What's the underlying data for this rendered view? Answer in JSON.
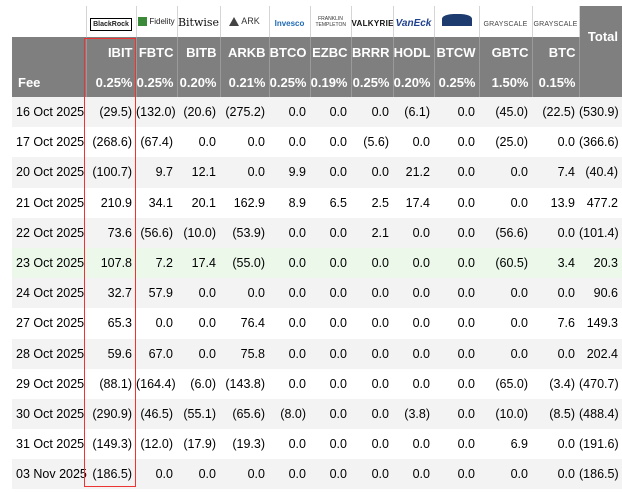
{
  "columns": [
    {
      "ticker": "IBIT",
      "fee": "0.25%",
      "logo_text": "BlackRock",
      "logo_icon": "blackrock-logo"
    },
    {
      "ticker": "FBTC",
      "fee": "0.25%",
      "logo_text": "Fidelity",
      "logo_icon": "fidelity-logo"
    },
    {
      "ticker": "BITB",
      "fee": "0.20%",
      "logo_text": "Bitwise",
      "logo_icon": "bitwise-logo"
    },
    {
      "ticker": "ARKB",
      "fee": "0.21%",
      "logo_text": "ARK",
      "logo_icon": "ark-logo"
    },
    {
      "ticker": "BTCO",
      "fee": "0.25%",
      "logo_text": "Invesco",
      "logo_icon": "invesco-logo"
    },
    {
      "ticker": "EZBC",
      "fee": "0.19%",
      "logo_text": "FRANKLIN TEMPLETON",
      "logo_icon": "franklin-logo"
    },
    {
      "ticker": "BRRR",
      "fee": "0.25%",
      "logo_text": "VALKYRIE",
      "logo_icon": "valkyrie-logo"
    },
    {
      "ticker": "HODL",
      "fee": "0.20%",
      "logo_text": "VanEck",
      "logo_icon": "vaneck-logo"
    },
    {
      "ticker": "BTCW",
      "fee": "0.25%",
      "logo_text": "",
      "logo_icon": "wisdomtree-logo"
    },
    {
      "ticker": "GBTC",
      "fee": "1.50%",
      "logo_text": "GRAYSCALE",
      "logo_icon": "grayscale-logo"
    },
    {
      "ticker": "BTC",
      "fee": "0.15%",
      "logo_text": "GRAYSCALE",
      "logo_icon": "grayscale-logo"
    }
  ],
  "total_label": "Total",
  "fee_label": "Fee",
  "rows": [
    {
      "date": "16 Oct 2025",
      "values": [
        "(29.5)",
        "(132.0)",
        "(20.6)",
        "(275.2)",
        "0.0",
        "0.0",
        "0.0",
        "(6.1)",
        "0.0",
        "(45.0)",
        "(22.5)"
      ],
      "total": "(530.9)"
    },
    {
      "date": "17 Oct 2025",
      "values": [
        "(268.6)",
        "(67.4)",
        "0.0",
        "0.0",
        "0.0",
        "0.0",
        "(5.6)",
        "0.0",
        "0.0",
        "(25.0)",
        "0.0"
      ],
      "total": "(366.6)"
    },
    {
      "date": "20 Oct 2025",
      "values": [
        "(100.7)",
        "9.7",
        "12.1",
        "0.0",
        "9.9",
        "0.0",
        "0.0",
        "21.2",
        "0.0",
        "0.0",
        "7.4"
      ],
      "total": "(40.4)"
    },
    {
      "date": "21 Oct 2025",
      "values": [
        "210.9",
        "34.1",
        "20.1",
        "162.9",
        "8.9",
        "6.5",
        "2.5",
        "17.4",
        "0.0",
        "0.0",
        "13.9"
      ],
      "total": "477.2"
    },
    {
      "date": "22 Oct 2025",
      "values": [
        "73.6",
        "(56.6)",
        "(10.0)",
        "(53.9)",
        "0.0",
        "0.0",
        "2.1",
        "0.0",
        "0.0",
        "(56.6)",
        "0.0"
      ],
      "total": "(101.4)"
    },
    {
      "date": "23 Oct 2025",
      "values": [
        "107.8",
        "7.2",
        "17.4",
        "(55.0)",
        "0.0",
        "0.0",
        "0.0",
        "0.0",
        "0.0",
        "(60.5)",
        "3.4"
      ],
      "total": "20.3",
      "highlight": true
    },
    {
      "date": "24 Oct 2025",
      "values": [
        "32.7",
        "57.9",
        "0.0",
        "0.0",
        "0.0",
        "0.0",
        "0.0",
        "0.0",
        "0.0",
        "0.0",
        "0.0"
      ],
      "total": "90.6"
    },
    {
      "date": "27 Oct 2025",
      "values": [
        "65.3",
        "0.0",
        "0.0",
        "76.4",
        "0.0",
        "0.0",
        "0.0",
        "0.0",
        "0.0",
        "0.0",
        "7.6"
      ],
      "total": "149.3"
    },
    {
      "date": "28 Oct 2025",
      "values": [
        "59.6",
        "67.0",
        "0.0",
        "75.8",
        "0.0",
        "0.0",
        "0.0",
        "0.0",
        "0.0",
        "0.0",
        "0.0"
      ],
      "total": "202.4"
    },
    {
      "date": "29 Oct 2025",
      "values": [
        "(88.1)",
        "(164.4)",
        "(6.0)",
        "(143.8)",
        "0.0",
        "0.0",
        "0.0",
        "0.0",
        "0.0",
        "(65.0)",
        "(3.4)"
      ],
      "total": "(470.7)"
    },
    {
      "date": "30 Oct 2025",
      "values": [
        "(290.9)",
        "(46.5)",
        "(55.1)",
        "(65.6)",
        "(8.0)",
        "0.0",
        "0.0",
        "(3.8)",
        "0.0",
        "(10.0)",
        "(8.5)"
      ],
      "total": "(488.4)"
    },
    {
      "date": "31 Oct 2025",
      "values": [
        "(149.3)",
        "(12.0)",
        "(17.9)",
        "(19.3)",
        "0.0",
        "0.0",
        "0.0",
        "0.0",
        "0.0",
        "6.9",
        "0.0"
      ],
      "total": "(191.6)"
    },
    {
      "date": "03 Nov 2025",
      "values": [
        "(186.5)",
        "0.0",
        "0.0",
        "0.0",
        "0.0",
        "0.0",
        "0.0",
        "0.0",
        "0.0",
        "0.0",
        "0.0"
      ],
      "total": "(186.5)"
    }
  ],
  "colors": {
    "header_bg": "#7f7f7f",
    "negative": "#e00000",
    "highlight_row": "#ebf8ea",
    "highlight_box": "#ee3333"
  }
}
